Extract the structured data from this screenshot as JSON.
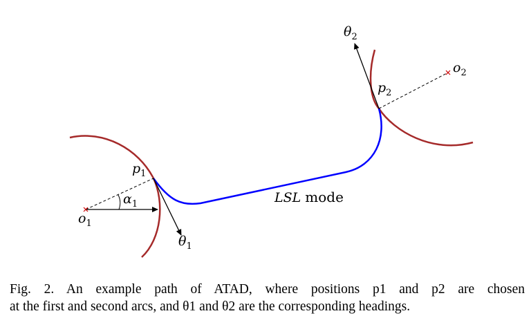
{
  "figure": {
    "labels": {
      "theta2": {
        "base": "θ",
        "sub": "2"
      },
      "o2": {
        "base": "o",
        "sub": "2"
      },
      "p2": {
        "base": "p",
        "sub": "2"
      },
      "p1": {
        "base": "p",
        "sub": "1"
      },
      "alpha1": {
        "base": "α",
        "sub": "1"
      },
      "o1": {
        "base": "o",
        "sub": "1"
      },
      "theta1": {
        "base": "θ",
        "sub": "1"
      },
      "mode_italic": "LSL",
      "mode_word": "mode"
    },
    "colors": {
      "arc": "#a52a2a",
      "path": "#0000ff",
      "ink": "#000000",
      "center_mark": "#cc0000"
    }
  },
  "caption": {
    "line1": "Fig. 2.   An example path of ATAD, where positions p1 and p2 are chosen",
    "line2": "at the first and second arcs, and θ1 and θ2 are the corresponding headings."
  }
}
